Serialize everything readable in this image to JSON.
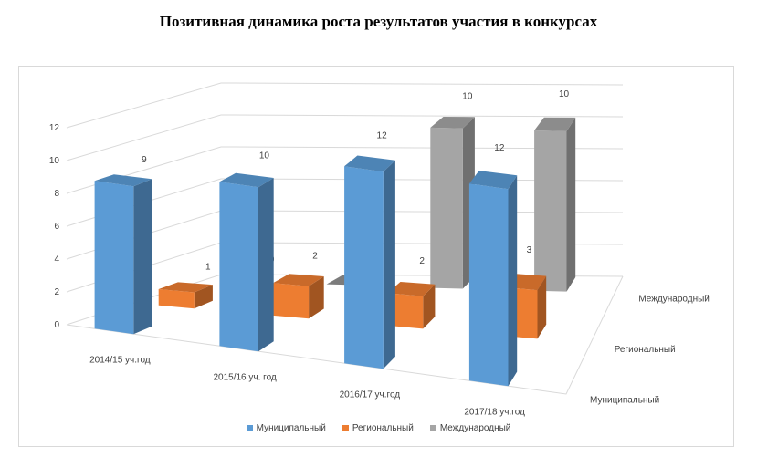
{
  "chart_data": {
    "type": "bar",
    "title": "Позитивная динамика роста результатов участия в конкурсах",
    "categories": [
      "2014/15 уч.год",
      "2015/16 уч. год",
      "2016/17 уч.год",
      "2017/18 уч.год"
    ],
    "series": [
      {
        "name": "Муниципальный",
        "values": [
          9,
          10,
          12,
          12
        ],
        "color": "#5b9bd5"
      },
      {
        "name": "Региональный",
        "values": [
          1,
          2,
          2,
          3
        ],
        "color": "#ed7d31"
      },
      {
        "name": "Международный",
        "values": [
          0,
          0,
          10,
          10
        ],
        "color": "#a5a5a5"
      }
    ],
    "yticks": [
      "0",
      "2",
      "4",
      "6",
      "8",
      "10",
      "12"
    ],
    "ylim": [
      0,
      12
    ],
    "legend_position": "bottom",
    "grid": true
  }
}
